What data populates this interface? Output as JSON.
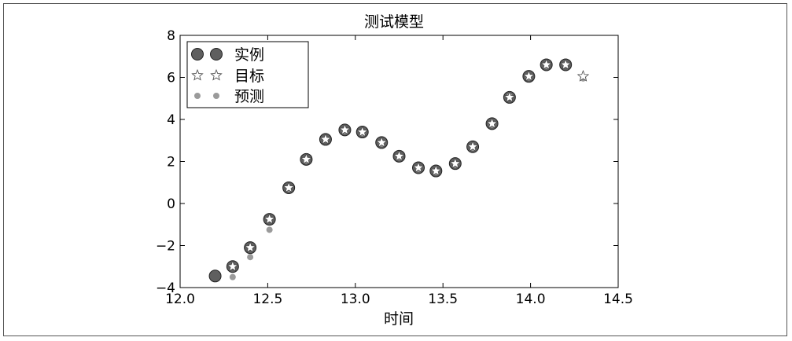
{
  "chart_data": {
    "type": "scatter",
    "title": "测试模型",
    "xlabel": "时间",
    "ylabel": "",
    "xlim": [
      12.0,
      14.5
    ],
    "ylim": [
      -4,
      8
    ],
    "xticks": [
      "12.0",
      "12.5",
      "13.0",
      "13.5",
      "14.0",
      "14.5"
    ],
    "yticks": [
      "−4",
      "−2",
      "0",
      "2",
      "4",
      "6",
      "8"
    ],
    "legend_position": "top-left",
    "series": [
      {
        "name": "实例",
        "marker": "large-circle",
        "color": "#5f5f5f",
        "x": [
          12.2,
          12.3,
          12.4,
          12.51,
          12.62,
          12.72,
          12.83,
          12.94,
          13.04,
          13.15,
          13.25,
          13.36,
          13.46,
          13.57,
          13.67,
          13.78,
          13.88,
          13.99,
          14.09,
          14.2
        ],
        "y": [
          -3.45,
          -3.0,
          -2.1,
          -0.75,
          0.75,
          2.1,
          3.05,
          3.5,
          3.4,
          2.9,
          2.25,
          1.7,
          1.55,
          1.9,
          2.7,
          3.8,
          5.05,
          6.05,
          6.6,
          6.6
        ]
      },
      {
        "name": "目标",
        "marker": "star",
        "color": "#ffffff",
        "x": [
          12.3,
          12.4,
          12.51,
          12.62,
          12.72,
          12.83,
          12.94,
          13.04,
          13.15,
          13.25,
          13.36,
          13.46,
          13.57,
          13.67,
          13.78,
          13.88,
          13.99,
          14.09,
          14.2,
          14.3
        ],
        "y": [
          -3.0,
          -2.1,
          -0.75,
          0.75,
          2.1,
          3.05,
          3.5,
          3.4,
          2.9,
          2.25,
          1.7,
          1.55,
          1.9,
          2.7,
          3.8,
          5.05,
          6.05,
          6.6,
          6.6,
          6.05
        ]
      },
      {
        "name": "预测",
        "marker": "small-circle",
        "color": "#9a9a9a",
        "x": [
          12.3,
          12.4,
          12.51,
          12.62,
          12.72,
          12.83,
          12.94,
          13.04,
          13.15,
          13.25,
          13.36,
          13.46,
          13.57,
          13.67,
          13.78,
          13.88,
          13.99,
          14.09,
          14.2,
          14.3
        ],
        "y": [
          -3.5,
          -2.55,
          -1.25,
          0.7,
          2.05,
          3.05,
          3.45,
          3.35,
          2.85,
          2.2,
          1.65,
          1.5,
          1.85,
          2.65,
          3.75,
          5.1,
          6.0,
          6.55,
          6.6,
          5.95
        ]
      }
    ]
  }
}
